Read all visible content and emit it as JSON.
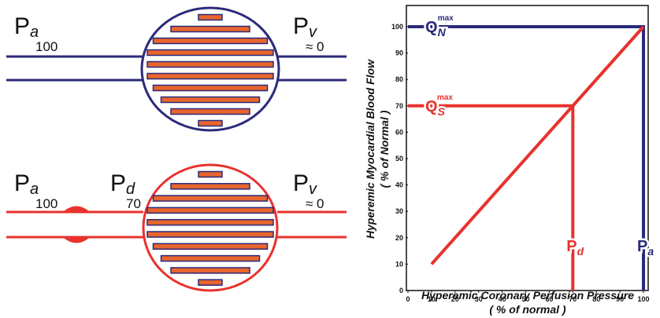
{
  "diagrams": [
    {
      "labels": [
        {
          "symbol": "P",
          "subscript": "a",
          "value": "100"
        },
        {
          "symbol": "P",
          "subscript": "v",
          "value": "≈ 0"
        }
      ]
    },
    {
      "labels": [
        {
          "symbol": "P",
          "subscript": "a",
          "value": "100"
        },
        {
          "symbol": "P",
          "subscript": "d",
          "value": "70"
        },
        {
          "symbol": "P",
          "subscript": "v",
          "value": "≈ 0"
        }
      ]
    }
  ],
  "chart_data": {
    "type": "line",
    "x_label": "Hyperemic Coronary Perfusion Pressure",
    "x_label_2": "( % of normal )",
    "y_label": "Hyperemic Myocardial Blood Flow",
    "y_label_2": "( % of Normal )",
    "xlim": [
      0,
      102
    ],
    "ylim": [
      0,
      108
    ],
    "xticks": [
      0,
      10,
      20,
      30,
      40,
      50,
      60,
      70,
      80,
      90,
      100
    ],
    "yticks": [
      0,
      10,
      20,
      30,
      40,
      50,
      60,
      70,
      80,
      90,
      100
    ],
    "series": [
      {
        "color": "#2b2a7a",
        "x": [
          0,
          100,
          100
        ],
        "values": [
          100,
          100,
          0
        ],
        "label": {
          "symbol": "Q",
          "subscript": "N",
          "superscript": "max"
        },
        "foot_label": {
          "symbol": "P",
          "subscript": "a"
        }
      },
      {
        "color": "#e8322d",
        "x": [
          0,
          70,
          70
        ],
        "values": [
          70,
          70,
          0
        ],
        "label": {
          "symbol": "Q",
          "subscript": "S",
          "superscript": "max"
        },
        "foot_label": {
          "symbol": "P",
          "subscript": "d"
        }
      },
      {
        "color": "#e8322d",
        "x": [
          10,
          100
        ],
        "values": [
          10,
          100
        ]
      }
    ]
  }
}
